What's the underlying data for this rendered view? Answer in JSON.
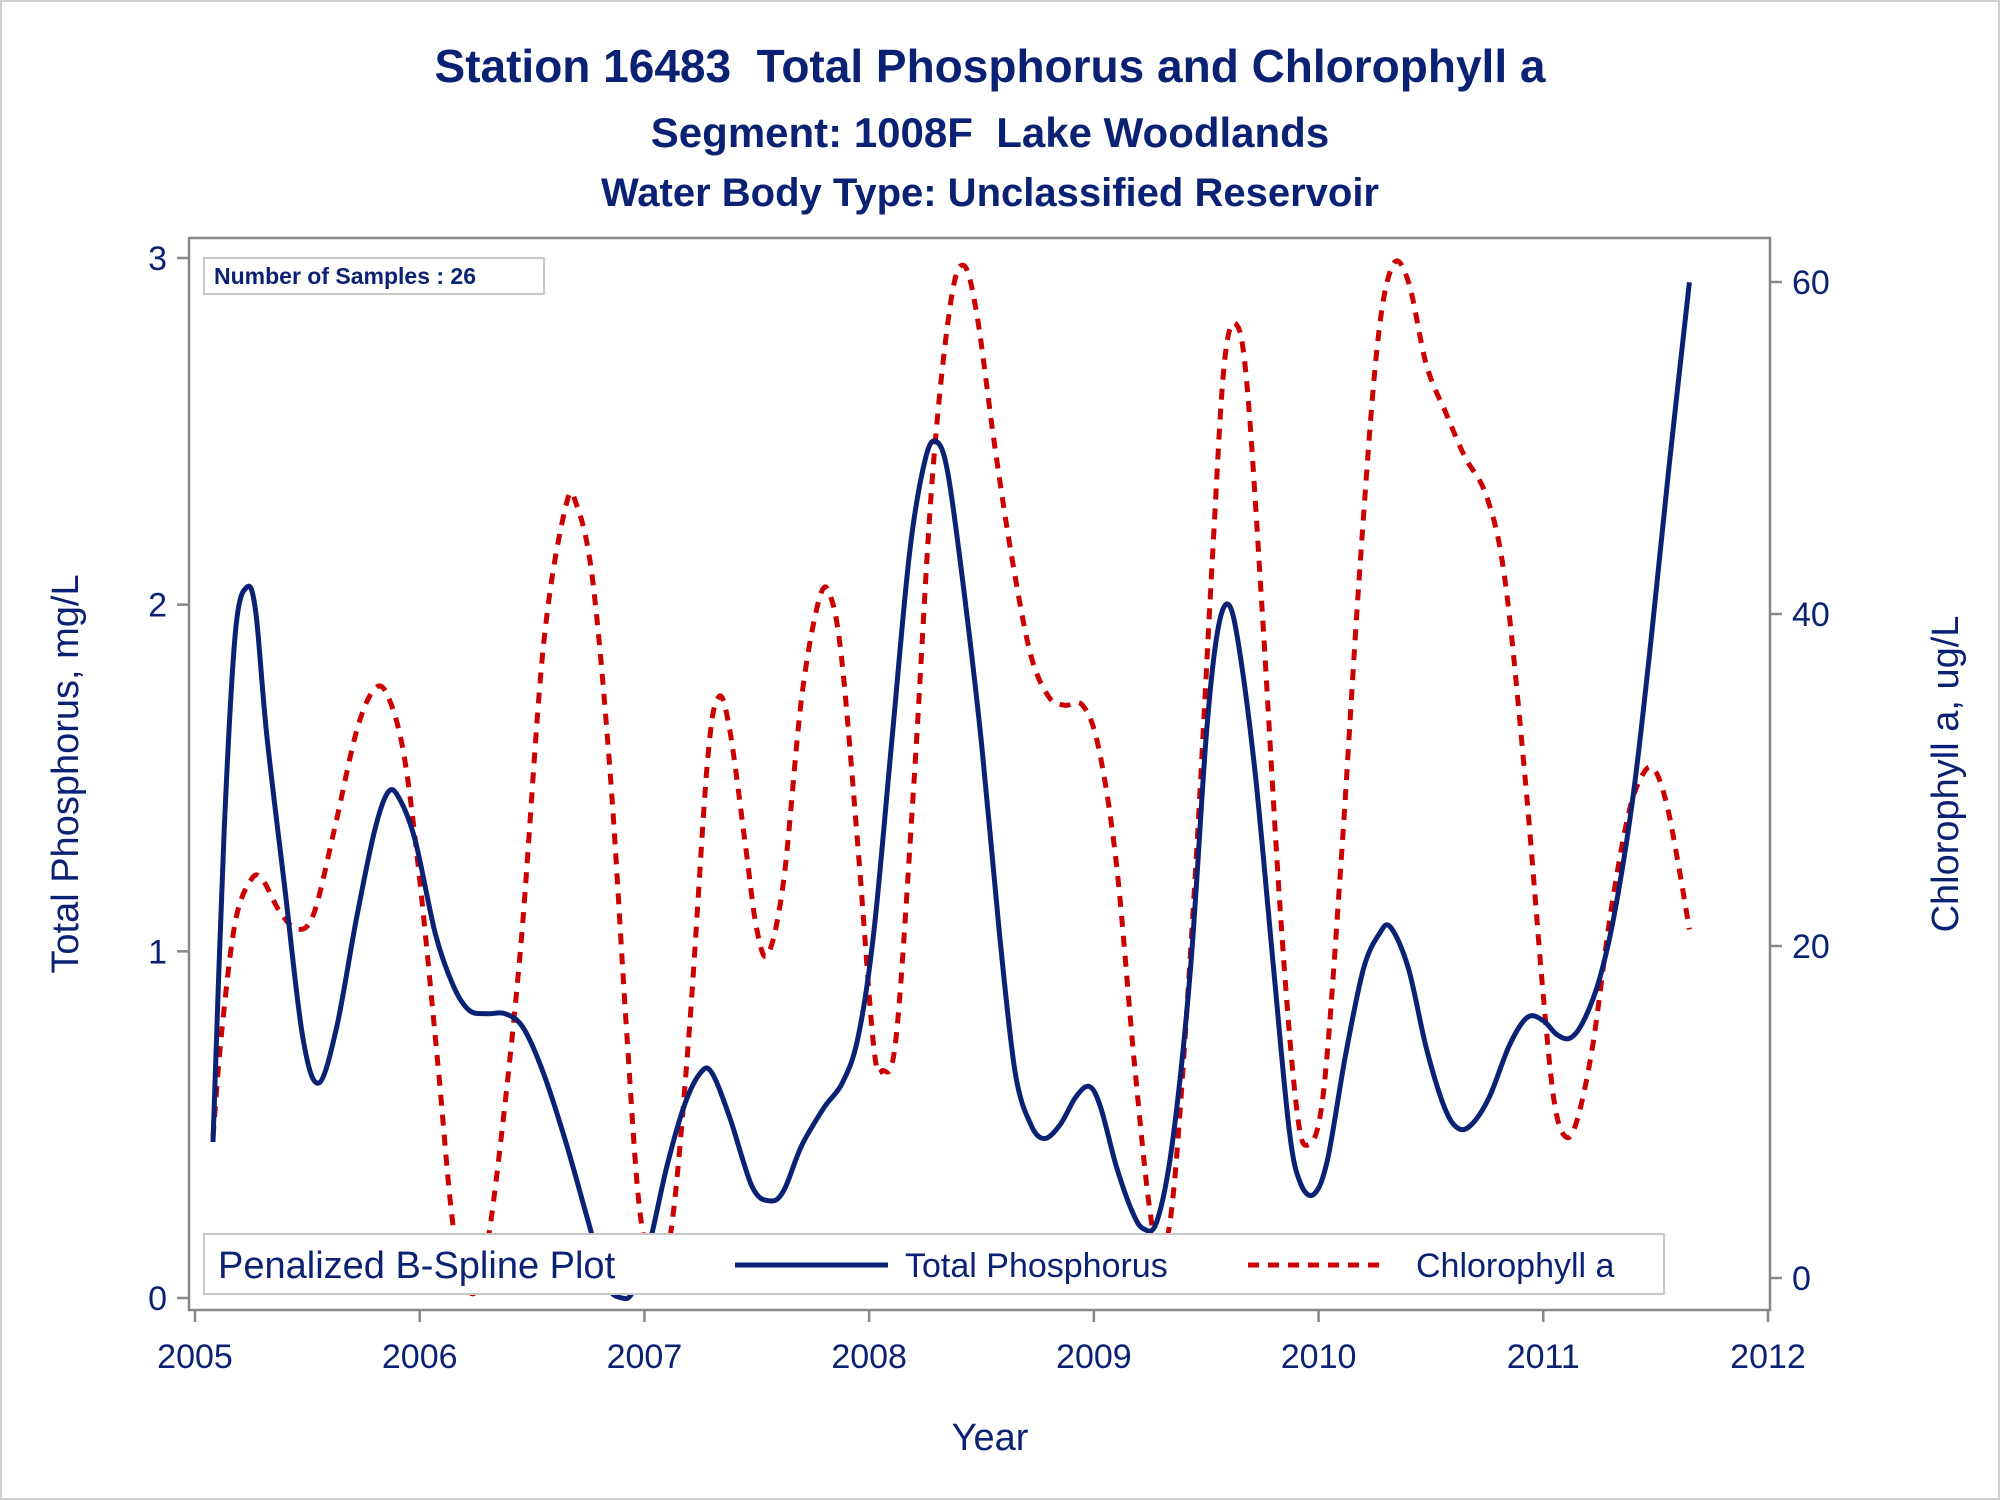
{
  "colors": {
    "text": "#0b2274",
    "axis": "#888888",
    "phosphorus": "#0b2274",
    "chlorophyll": "#cc0000",
    "background": "#ffffff"
  },
  "chart_data": {
    "type": "line",
    "title": "Station 16483  Total Phosphorus and Chlorophyll a",
    "subtitle": "Segment: 1008F  Lake Woodlands",
    "subtitle2": "Water Body Type: Unclassified Reservoir",
    "xlabel": "Year",
    "ylabel": "Total Phosphorus, mg/L",
    "y2label": "Chlorophyll a, ug/L",
    "xlim": [
      2005,
      2012
    ],
    "ylim": [
      0,
      3
    ],
    "y2lim": [
      0,
      60
    ],
    "xticks": [
      2005,
      2006,
      2007,
      2008,
      2009,
      2010,
      2011,
      2012
    ],
    "yticks": [
      0,
      1,
      2,
      3
    ],
    "y2ticks": [
      0,
      20,
      40,
      60
    ],
    "grid": false,
    "inset_label": "Number of Samples : 26",
    "legend": {
      "placement": "bottom",
      "title": "Penalized B-Spline Plot",
      "entries": [
        "Total Phosphorus",
        "Chlorophyll a"
      ]
    },
    "series": [
      {
        "name": "Total Phosphorus",
        "axis": "left",
        "style": "solid",
        "points": [
          [
            2005.08,
            0.45
          ],
          [
            2005.13,
            1.35
          ],
          [
            2005.18,
            1.92
          ],
          [
            2005.23,
            2.05
          ],
          [
            2005.27,
            1.98
          ],
          [
            2005.32,
            1.62
          ],
          [
            2005.4,
            1.18
          ],
          [
            2005.48,
            0.75
          ],
          [
            2005.55,
            0.62
          ],
          [
            2005.63,
            0.78
          ],
          [
            2005.72,
            1.1
          ],
          [
            2005.8,
            1.35
          ],
          [
            2005.86,
            1.46
          ],
          [
            2005.91,
            1.44
          ],
          [
            2005.98,
            1.32
          ],
          [
            2006.07,
            1.05
          ],
          [
            2006.15,
            0.9
          ],
          [
            2006.22,
            0.83
          ],
          [
            2006.3,
            0.82
          ],
          [
            2006.38,
            0.82
          ],
          [
            2006.46,
            0.78
          ],
          [
            2006.55,
            0.65
          ],
          [
            2006.65,
            0.45
          ],
          [
            2006.75,
            0.22
          ],
          [
            2006.83,
            0.04
          ],
          [
            2006.9,
            0.0
          ],
          [
            2006.95,
            0.02
          ],
          [
            2007.02,
            0.15
          ],
          [
            2007.1,
            0.38
          ],
          [
            2007.18,
            0.56
          ],
          [
            2007.25,
            0.65
          ],
          [
            2007.3,
            0.65
          ],
          [
            2007.38,
            0.52
          ],
          [
            2007.48,
            0.32
          ],
          [
            2007.56,
            0.28
          ],
          [
            2007.62,
            0.31
          ],
          [
            2007.7,
            0.44
          ],
          [
            2007.8,
            0.55
          ],
          [
            2007.88,
            0.62
          ],
          [
            2007.95,
            0.75
          ],
          [
            2008.02,
            1.05
          ],
          [
            2008.1,
            1.6
          ],
          [
            2008.18,
            2.15
          ],
          [
            2008.25,
            2.42
          ],
          [
            2008.3,
            2.47
          ],
          [
            2008.35,
            2.38
          ],
          [
            2008.42,
            2.05
          ],
          [
            2008.5,
            1.6
          ],
          [
            2008.58,
            1.05
          ],
          [
            2008.65,
            0.65
          ],
          [
            2008.72,
            0.5
          ],
          [
            2008.78,
            0.46
          ],
          [
            2008.85,
            0.5
          ],
          [
            2008.92,
            0.58
          ],
          [
            2008.98,
            0.61
          ],
          [
            2009.03,
            0.55
          ],
          [
            2009.1,
            0.38
          ],
          [
            2009.17,
            0.25
          ],
          [
            2009.22,
            0.2
          ],
          [
            2009.28,
            0.22
          ],
          [
            2009.35,
            0.45
          ],
          [
            2009.43,
            0.95
          ],
          [
            2009.5,
            1.62
          ],
          [
            2009.55,
            1.92
          ],
          [
            2009.6,
            2.0
          ],
          [
            2009.65,
            1.86
          ],
          [
            2009.72,
            1.5
          ],
          [
            2009.8,
            0.95
          ],
          [
            2009.87,
            0.48
          ],
          [
            2009.92,
            0.33
          ],
          [
            2009.98,
            0.3
          ],
          [
            2010.04,
            0.4
          ],
          [
            2010.12,
            0.7
          ],
          [
            2010.2,
            0.95
          ],
          [
            2010.27,
            1.05
          ],
          [
            2010.32,
            1.07
          ],
          [
            2010.4,
            0.95
          ],
          [
            2010.48,
            0.72
          ],
          [
            2010.56,
            0.55
          ],
          [
            2010.62,
            0.49
          ],
          [
            2010.68,
            0.5
          ],
          [
            2010.76,
            0.58
          ],
          [
            2010.85,
            0.73
          ],
          [
            2010.93,
            0.81
          ],
          [
            2011.0,
            0.8
          ],
          [
            2011.06,
            0.76
          ],
          [
            2011.12,
            0.75
          ],
          [
            2011.18,
            0.8
          ],
          [
            2011.25,
            0.92
          ],
          [
            2011.32,
            1.12
          ],
          [
            2011.4,
            1.45
          ],
          [
            2011.48,
            1.9
          ],
          [
            2011.56,
            2.4
          ],
          [
            2011.65,
            2.93
          ]
        ]
      },
      {
        "name": "Chlorophyll a",
        "axis": "right",
        "style": "dashed",
        "points": [
          [
            2005.08,
            8.5
          ],
          [
            2005.12,
            15.0
          ],
          [
            2005.18,
            21.5
          ],
          [
            2005.25,
            24.0
          ],
          [
            2005.3,
            24.0
          ],
          [
            2005.38,
            22.0
          ],
          [
            2005.46,
            21.0
          ],
          [
            2005.53,
            22.0
          ],
          [
            2005.62,
            27.0
          ],
          [
            2005.72,
            33.0
          ],
          [
            2005.8,
            35.5
          ],
          [
            2005.86,
            35.0
          ],
          [
            2005.93,
            31.5
          ],
          [
            2006.0,
            24.0
          ],
          [
            2006.08,
            13.0
          ],
          [
            2006.15,
            3.0
          ],
          [
            2006.22,
            -0.8
          ],
          [
            2006.28,
            0.5
          ],
          [
            2006.35,
            7.0
          ],
          [
            2006.45,
            20.0
          ],
          [
            2006.55,
            38.0
          ],
          [
            2006.65,
            46.5
          ],
          [
            2006.7,
            46.5
          ],
          [
            2006.77,
            42.0
          ],
          [
            2006.85,
            30.0
          ],
          [
            2006.92,
            15.0
          ],
          [
            2006.98,
            4.0
          ],
          [
            2007.05,
            0.5
          ],
          [
            2007.12,
            3.0
          ],
          [
            2007.2,
            15.0
          ],
          [
            2007.28,
            31.0
          ],
          [
            2007.33,
            35.0
          ],
          [
            2007.38,
            33.0
          ],
          [
            2007.45,
            26.0
          ],
          [
            2007.5,
            21.0
          ],
          [
            2007.55,
            19.5
          ],
          [
            2007.62,
            24.0
          ],
          [
            2007.7,
            35.0
          ],
          [
            2007.78,
            41.0
          ],
          [
            2007.83,
            41.0
          ],
          [
            2007.88,
            37.0
          ],
          [
            2007.95,
            26.0
          ],
          [
            2008.02,
            14.0
          ],
          [
            2008.06,
            12.5
          ],
          [
            2008.12,
            14.5
          ],
          [
            2008.2,
            30.0
          ],
          [
            2008.28,
            48.0
          ],
          [
            2008.36,
            58.5
          ],
          [
            2008.42,
            61.0
          ],
          [
            2008.48,
            58.0
          ],
          [
            2008.56,
            50.0
          ],
          [
            2008.64,
            43.0
          ],
          [
            2008.72,
            37.5
          ],
          [
            2008.8,
            35.0
          ],
          [
            2008.87,
            34.5
          ],
          [
            2008.95,
            34.5
          ],
          [
            2009.02,
            32.0
          ],
          [
            2009.1,
            25.0
          ],
          [
            2009.18,
            13.0
          ],
          [
            2009.25,
            4.0
          ],
          [
            2009.3,
            1.5
          ],
          [
            2009.36,
            6.0
          ],
          [
            2009.45,
            24.0
          ],
          [
            2009.53,
            44.0
          ],
          [
            2009.58,
            55.0
          ],
          [
            2009.63,
            57.5
          ],
          [
            2009.68,
            54.0
          ],
          [
            2009.75,
            40.0
          ],
          [
            2009.83,
            22.0
          ],
          [
            2009.9,
            10.5
          ],
          [
            2009.95,
            8.0
          ],
          [
            2010.02,
            11.0
          ],
          [
            2010.1,
            25.0
          ],
          [
            2010.18,
            42.0
          ],
          [
            2010.26,
            56.0
          ],
          [
            2010.33,
            61.0
          ],
          [
            2010.4,
            60.0
          ],
          [
            2010.48,
            55.0
          ],
          [
            2010.57,
            52.0
          ],
          [
            2010.65,
            49.5
          ],
          [
            2010.75,
            47.0
          ],
          [
            2010.83,
            42.0
          ],
          [
            2010.92,
            30.0
          ],
          [
            2011.0,
            17.0
          ],
          [
            2011.05,
            10.5
          ],
          [
            2011.1,
            8.5
          ],
          [
            2011.15,
            9.5
          ],
          [
            2011.22,
            14.0
          ],
          [
            2011.3,
            22.0
          ],
          [
            2011.38,
            28.0
          ],
          [
            2011.45,
            30.5
          ],
          [
            2011.5,
            30.5
          ],
          [
            2011.55,
            28.5
          ],
          [
            2011.6,
            25.0
          ],
          [
            2011.65,
            21.0
          ]
        ]
      }
    ]
  }
}
